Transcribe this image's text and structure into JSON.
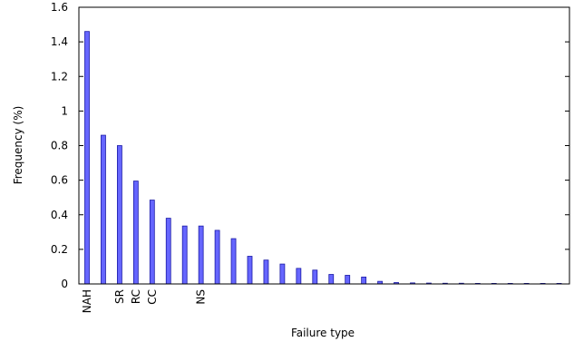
{
  "chart_data": {
    "type": "bar",
    "title": "",
    "xlabel": "Failure type",
    "ylabel": "Frequency (%)",
    "ylim": [
      0,
      1.6
    ],
    "yticks": [
      "0",
      "0.2",
      "0.4",
      "0.6",
      "0.8",
      "1",
      "1.2",
      "1.4",
      "1.6"
    ],
    "grid": false,
    "bar_color": "#6666ff",
    "bar_edge_color": "#1a1aa6",
    "categories": [
      "NAH",
      "",
      "SR",
      "RC",
      "CC",
      "",
      "",
      "NS",
      "",
      "",
      "",
      "",
      "",
      "",
      "",
      "",
      "",
      "",
      "",
      "",
      "",
      "",
      "",
      "",
      "",
      "",
      "",
      "",
      "",
      ""
    ],
    "values": [
      1.46,
      0.86,
      0.8,
      0.595,
      0.485,
      0.38,
      0.335,
      0.335,
      0.31,
      0.262,
      0.16,
      0.138,
      0.115,
      0.09,
      0.08,
      0.055,
      0.05,
      0.04,
      0.015,
      0.008,
      0.006,
      0.005,
      0.004,
      0.004,
      0.003,
      0.003,
      0.002,
      0.002,
      0.002,
      0.001
    ]
  }
}
